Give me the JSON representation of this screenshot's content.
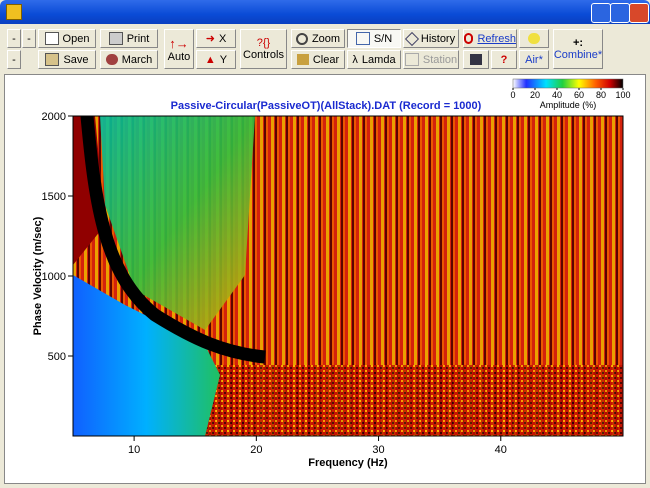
{
  "toolbar": {
    "buttons": [
      "-",
      "-",
      "-",
      "Open",
      "Save",
      "Print",
      "March",
      "Auto",
      "X",
      "Y",
      "Controls",
      "Zoom",
      "Clear",
      "S/N",
      "Lamda",
      "History",
      "Station",
      "Refresh",
      "?",
      "Air*",
      "Combine*"
    ]
  },
  "chart_data": {
    "type": "heatmap",
    "title": "Passive-Circular(PassiveOT)(AllStack).DAT (Record = 1000)",
    "x_label": "Frequency (Hz)",
    "y_label": "Phase Velocity (m/sec)",
    "xlim": [
      5,
      50
    ],
    "xticks": [
      10,
      20,
      30,
      40
    ],
    "ylim": [
      0,
      2000
    ],
    "yticks": [
      500,
      1000,
      1500,
      2000
    ],
    "colorbar": {
      "label": "Amplitude (%)",
      "lim": [
        0,
        100
      ],
      "ticks": [
        0,
        20,
        40,
        60,
        80,
        100
      ]
    }
  }
}
